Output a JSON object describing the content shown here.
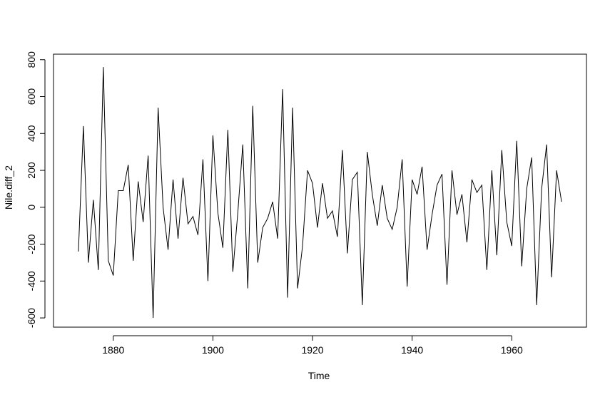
{
  "chart_data": {
    "type": "line",
    "title": "",
    "xlabel": "Time",
    "ylabel": "Nile.diff_2",
    "xlim": [
      1868,
      1975
    ],
    "ylim": [
      -650,
      830
    ],
    "x_ticks": [
      1880,
      1900,
      1920,
      1940,
      1960
    ],
    "y_ticks": [
      -600,
      -400,
      -200,
      0,
      200,
      400,
      600,
      800
    ],
    "x_start": 1873,
    "grid": false,
    "legend": "none",
    "line_color": "#000000",
    "series": [
      {
        "values": [
          -240,
          440,
          -300,
          40,
          -340,
          760,
          -290,
          -370,
          90,
          90,
          230,
          -290,
          140,
          -80,
          280,
          -600,
          540,
          0,
          -230,
          150,
          -170,
          160,
          -90,
          -50,
          -150,
          260,
          -400,
          390,
          -30,
          -220,
          420,
          -350,
          -30,
          340,
          -440,
          550,
          -300,
          -110,
          -60,
          30,
          -170,
          640,
          -490,
          540,
          -440,
          -210,
          200,
          130,
          -110,
          130,
          -60,
          -20,
          -160,
          310,
          -250,
          150,
          190,
          -530,
          300,
          70,
          -100,
          120,
          -60,
          -120,
          0,
          260,
          -430,
          150,
          70,
          220,
          -230,
          -40,
          120,
          180,
          -420,
          200,
          -40,
          70,
          -190,
          150,
          80,
          120,
          -340,
          200,
          -260,
          310,
          -80,
          -210,
          360,
          -320,
          100,
          270,
          -530,
          100,
          340,
          -380,
          200,
          30
        ]
      }
    ]
  }
}
